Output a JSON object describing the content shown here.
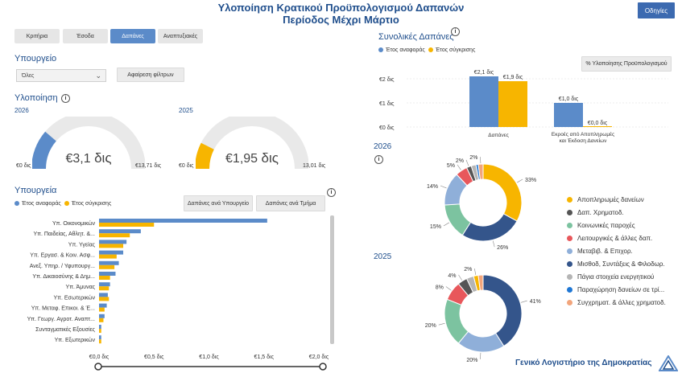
{
  "header": {
    "title_line1": "Υλοποίηση Κρατικού Προϋπολογισμού Δαπανών",
    "title_line2": "Περίοδος Μέχρι Μάρτιο",
    "guide_button": "Οδηγίες"
  },
  "tabs": [
    {
      "label": "Κριτήρια",
      "active": false
    },
    {
      "label": "Έσοδα",
      "active": false
    },
    {
      "label": "Δαπάνες",
      "active": true
    },
    {
      "label": "Αναπτυξιακές",
      "active": false
    }
  ],
  "filters": {
    "ministry_label": "Υπουργείο",
    "ministry_value": "Όλες",
    "clear_button": "Αφαίρεση φίλτρων"
  },
  "implementation": {
    "title": "Υλοποίηση",
    "gauges": [
      {
        "year": "2026",
        "value_num": "€3,1",
        "value_unit": "δις",
        "min": "€0 δις",
        "max": "€13,71 δις",
        "fraction": 0.226,
        "color": "#5b8bc9"
      },
      {
        "year": "2025",
        "value_num": "€1,95",
        "value_unit": "δις",
        "min": "€0 δις",
        "max": "13,01 δις",
        "fraction": 0.15,
        "color": "#f7b500"
      }
    ]
  },
  "ministries": {
    "title": "Υπουργεία",
    "legend_ref": "Έτος αναφοράς",
    "legend_cmp": "Έτος σύγκρισης",
    "btn_by_ministry": "Δαπάνες ανά Υπουργείο",
    "btn_by_dept": "Δαπάνες ανά Τμήμα"
  },
  "totals": {
    "title": "Συνολικές Δαπάνες",
    "legend_ref": "Έτος αναφοράς",
    "legend_cmp": "Έτος σύγκρισης",
    "pct_button": "% Υλοποίησης Προϋπολογισμού"
  },
  "donuts": {
    "year_a": "2026",
    "year_b": "2025"
  },
  "colors": {
    "ref": "#5b8bc9",
    "cmp": "#f7b500",
    "accent": "#1f4e8c"
  },
  "footer": {
    "org": "Γενικό Λογιστήριο της Δημοκρατίας"
  },
  "chart_data": [
    {
      "type": "bar",
      "orientation": "horizontal",
      "categories": [
        "Υπ. Οικονομικών",
        "Υπ. Παιδείας, Αθλητ. &...",
        "Υπ. Υγείας",
        "Υπ. Εργασ. & Κοιν. Ασφ...",
        "Ανεξ. Υπηρ. / Υφυπουργ...",
        "Υπ. Δικαιοσύνης & Δημ...",
        "Υπ. Άμυνας",
        "Υπ. Εσωτερικών",
        "Υπ. Μεταφ. Επικοι. & Έ...",
        "Υπ. Γεωργ. Αγροτ. Αναπτ...",
        "Συνταγματικές Εξουσίες",
        "Υπ. Εξωτερικών"
      ],
      "series": [
        {
          "name": "Έτος αναφοράς",
          "values": [
            1.53,
            0.38,
            0.25,
            0.22,
            0.18,
            0.15,
            0.1,
            0.08,
            0.07,
            0.05,
            0.02,
            0.02
          ]
        },
        {
          "name": "Έτος σύγκρισης",
          "values": [
            0.5,
            0.28,
            0.22,
            0.16,
            0.14,
            0.1,
            0.09,
            0.09,
            0.05,
            0.04,
            0.02,
            0.02
          ]
        }
      ],
      "xticks": [
        "€0,0 δις",
        "€0,5 δις",
        "€1,0 δις",
        "€1,5 δις",
        "€2,0 δις"
      ],
      "xlim": [
        0,
        2.0
      ]
    },
    {
      "type": "bar",
      "categories": [
        "Δαπάνες",
        "Εκροές από Αποπληρωμές και Έκδοση Δανείων"
      ],
      "series": [
        {
          "name": "Έτος αναφοράς",
          "values": [
            2.1,
            1.0
          ],
          "labels": [
            "€2,1 δις",
            "€1,0 δις"
          ]
        },
        {
          "name": "Έτος σύγκρισης",
          "values": [
            1.9,
            0.0
          ],
          "labels": [
            "€1,9 δις",
            "€0,0 δις"
          ]
        }
      ],
      "yticks": [
        "€0 δις",
        "€1 δις",
        "€2 δις"
      ],
      "ylim": [
        0,
        2.5
      ]
    },
    {
      "type": "pie",
      "year": "2026",
      "slices": [
        {
          "name": "Αποπληρωμές δανείων",
          "value": 33,
          "label": "33%",
          "color": "#f7b500"
        },
        {
          "name": "Μισθοδ, Συντάξεις & Φιλοδωρ.",
          "value": 26,
          "label": "26%",
          "color": "#34558b"
        },
        {
          "name": "Κοινωνικές παροχές",
          "value": 15,
          "label": "15%",
          "color": "#7cc3a0"
        },
        {
          "name": "Μεταβιβ. & Επιχορ.",
          "value": 14,
          "label": "14%",
          "color": "#8fafd9"
        },
        {
          "name": "Λειτουργικές & άλλες δαπ.",
          "value": 5,
          "label": "5%",
          "color": "#e8575b"
        },
        {
          "name": "Δαπ. Χρηματοδ.",
          "value": 2,
          "label": "2%",
          "color": "#555555"
        },
        {
          "name": "Πάγια στοιχεία ενεργητικού",
          "value": 2,
          "label": "",
          "color": "#b5b5b5"
        },
        {
          "name": "Παραχώρηση δανείων σε τρί...",
          "value": 1,
          "label": "",
          "color": "#1f77d4"
        },
        {
          "name": "Συγχρηματ. & άλλες χρηματοδ.",
          "value": 2,
          "label": "2%",
          "color": "#f2a57c"
        }
      ]
    },
    {
      "type": "pie",
      "year": "2025",
      "slices": [
        {
          "name": "Μισθοδ, Συντάξεις & Φιλοδωρ.",
          "value": 41,
          "label": "41%",
          "color": "#34558b"
        },
        {
          "name": "Μεταβιβ. & Επιχορ.",
          "value": 20,
          "label": "20%",
          "color": "#8fafd9"
        },
        {
          "name": "Κοινωνικές παροχές",
          "value": 20,
          "label": "20%",
          "color": "#7cc3a0"
        },
        {
          "name": "Λειτουργικές & άλλες δαπ.",
          "value": 8,
          "label": "8%",
          "color": "#e8575b"
        },
        {
          "name": "Δαπ. Χρηματοδ.",
          "value": 4,
          "label": "4%",
          "color": "#555555"
        },
        {
          "name": "Πάγια στοιχεία ενεργητικού",
          "value": 3,
          "label": "",
          "color": "#b5b5b5"
        },
        {
          "name": "Αποπληρωμές δανείων",
          "value": 2,
          "label": "2%",
          "color": "#f7b500"
        },
        {
          "name": "Συγχρηματ. & άλλες χρηματοδ.",
          "value": 2,
          "label": "",
          "color": "#f2a57c"
        }
      ]
    }
  ],
  "donut_legend": [
    {
      "label": "Αποπληρωμές δανείων",
      "color": "#f7b500"
    },
    {
      "label": "Δαπ. Χρηματοδ.",
      "color": "#555555"
    },
    {
      "label": "Κοινωνικές παροχές",
      "color": "#7cc3a0"
    },
    {
      "label": "Λειτουργικές & άλλες δαπ.",
      "color": "#e8575b"
    },
    {
      "label": "Μεταβιβ. & Επιχορ.",
      "color": "#8fafd9"
    },
    {
      "label": "Μισθοδ, Συντάξεις & Φιλοδωρ.",
      "color": "#34558b"
    },
    {
      "label": "Πάγια στοιχεία ενεργητικού",
      "color": "#b5b5b5"
    },
    {
      "label": "Παραχώρηση δανείων σε τρί...",
      "color": "#1f77d4"
    },
    {
      "label": "Συγχρηματ. & άλλες χρηματοδ.",
      "color": "#f2a57c"
    }
  ]
}
